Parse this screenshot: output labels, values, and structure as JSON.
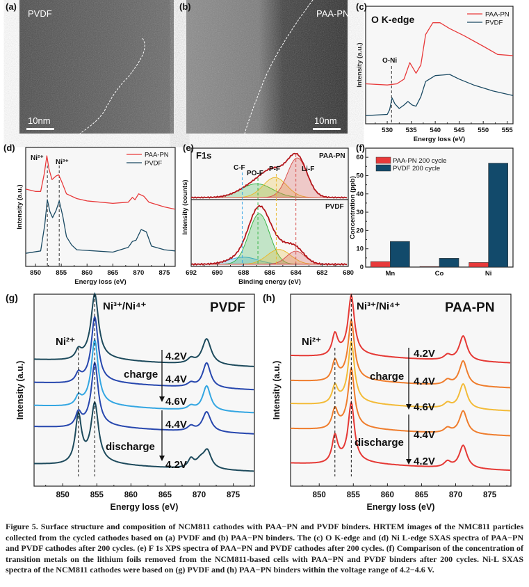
{
  "panels": {
    "a": {
      "label": "(a)",
      "title": "PVDF",
      "scale_bar": "10nm"
    },
    "b": {
      "label": "(b)",
      "title": "PAA-PN",
      "scale_bar": "10nm"
    },
    "c": {
      "label": "(c)",
      "title": "O K-edge",
      "annotation": "O-Ni"
    },
    "d": {
      "label": "(d)",
      "annotations": [
        "Ni²⁺",
        "Ni³⁺"
      ]
    },
    "e": {
      "label": "(e)",
      "title": "F1s",
      "top_label": "PAA-PN",
      "bottom_label": "PVDF",
      "components": [
        "C-F",
        "PO-F",
        "P-F",
        "Li-F"
      ]
    },
    "f": {
      "label": "(f)"
    },
    "g": {
      "label": "(g)",
      "title": "PVDF",
      "ni2": "Ni²⁺",
      "ni34": "Ni³⁺/Ni⁴⁺",
      "charge": "charge",
      "discharge": "discharge",
      "voltages": [
        "4.2V",
        "4.4V",
        "4.6V",
        "4.4V",
        "4.2V"
      ]
    },
    "h": {
      "label": "(h)",
      "title": "PAA-PN",
      "ni2": "Ni²⁺",
      "ni34": "Ni³⁺/Ni⁴⁺",
      "charge": "charge",
      "discharge": "discharge",
      "voltages": [
        "4.2V",
        "4.4V",
        "4.6V",
        "4.4V",
        "4.2V"
      ]
    }
  },
  "caption": "Figure 5. Surface structure and composition of NCM811 cathodes with PAA−PN and PVDF binders. HRTEM images of the NMC811 particles collected from the cycled cathodes based on (a) PVDF and (b) PAA−PN binders. The (c) O K-edge and (d) Ni L-edge SXAS spectra of PAA−PN and PVDF cathodes after 200 cycles. (e) F 1s XPS spectra of PAA−PN and PVDF cathodes after 200 cycles. (f) Comparison of the concentration of transition metals on the lithium foils removed from the NCM811-based cells with PAA−PN and PVDF binders after 200 cycles. Ni-L SXAS spectra of the NCM811 cathodes were based on (g) PVDF and (h) PAA−PN binders within the voltage range of 4.2−4.6 V.",
  "chart_data": [
    {
      "id": "c",
      "type": "line",
      "title": "O K-edge",
      "xlabel": "Energy loss (eV)",
      "ylabel": "Intensity (a.u.)",
      "xlim": [
        525.5,
        556.2
      ],
      "ylim": [
        0,
        10
      ],
      "xticks": [
        530,
        535,
        540,
        545,
        550,
        555
      ],
      "legend": "top-right",
      "series": [
        {
          "name": "PAA-PN",
          "color": "#e8393a",
          "x": [
            525.5,
            530,
            532,
            533.5,
            534.7,
            536,
            537,
            538,
            539.5,
            541,
            543,
            546,
            550,
            553,
            556.2
          ],
          "y": [
            3.4,
            3.3,
            3.4,
            3.8,
            5.2,
            4.3,
            5.0,
            7.6,
            8.6,
            8.6,
            8.1,
            7.5,
            6.6,
            5.9,
            5.8
          ]
        },
        {
          "name": "PVDF",
          "color": "#1b4a63",
          "x": [
            525.5,
            530,
            530.5,
            531,
            531.6,
            532.5,
            533.5,
            534.3,
            535.2,
            536,
            537,
            538,
            540,
            543,
            545,
            548,
            552,
            556.2
          ],
          "y": [
            0.7,
            0.8,
            1.2,
            2.2,
            1.7,
            1.3,
            1.6,
            1.9,
            1.6,
            1.5,
            2.3,
            3.6,
            4.1,
            4.2,
            3.8,
            3.3,
            2.8,
            2.4
          ]
        }
      ],
      "marker_x": 530.9
    },
    {
      "id": "d",
      "type": "line",
      "xlabel": "Energy loss (eV)",
      "ylabel": "Intensity (a.u.)",
      "xlim": [
        848.1,
        877.1
      ],
      "ylim": [
        0,
        10
      ],
      "xticks": [
        850,
        855,
        860,
        865,
        870,
        875
      ],
      "legend": "top-right",
      "series": [
        {
          "name": "PAA-PN",
          "color": "#e8393a",
          "x": [
            848.1,
            850,
            851,
            851.7,
            852.2,
            852.6,
            853.2,
            854,
            854.5,
            855.2,
            856,
            858,
            860,
            865,
            868,
            868.8,
            869.3,
            870,
            871,
            872,
            875,
            877.1
          ],
          "y": [
            6.5,
            6.3,
            6.3,
            7.8,
            9.3,
            8.2,
            7.3,
            7.6,
            7.7,
            7.0,
            6.1,
            5.7,
            5.5,
            5.3,
            5.4,
            5.8,
            5.6,
            6.1,
            5.9,
            5.4,
            5.0,
            4.8
          ]
        },
        {
          "name": "PVDF",
          "color": "#1b4a63",
          "x": [
            848.1,
            851,
            851.8,
            852.3,
            852.8,
            853.3,
            854,
            854.6,
            855.3,
            856,
            857,
            858,
            865,
            868,
            868.8,
            869.5,
            870.5,
            871.5,
            872.5,
            875,
            877.1
          ],
          "y": [
            1.1,
            1.3,
            3.5,
            5.6,
            4.6,
            4.1,
            4.7,
            5.5,
            4.2,
            2.5,
            1.8,
            1.4,
            1.2,
            1.6,
            2.1,
            2.2,
            3.1,
            2.9,
            1.7,
            1.4,
            1.3
          ]
        }
      ],
      "marker_x": [
        852.3,
        854.6
      ]
    },
    {
      "id": "e",
      "type": "line",
      "title": "F1s",
      "xlabel": "Binding energy (eV)",
      "ylabel": "Intensity (counts)",
      "xlim": [
        692,
        680
      ],
      "xticks": [
        692,
        690,
        688,
        686,
        684,
        682,
        680
      ],
      "top": {
        "name": "PAA-PN",
        "peaks": [
          {
            "name": "C-F",
            "center": 688.1,
            "height": 0.0,
            "sigma": 1.0
          },
          {
            "name": "PO-F",
            "center": 687.0,
            "height": 0.33,
            "sigma": 1.2
          },
          {
            "name": "P-F",
            "center": 685.6,
            "height": 0.48,
            "sigma": 0.9
          },
          {
            "name": "Li-F",
            "center": 683.9,
            "height": 0.95,
            "sigma": 0.75
          }
        ]
      },
      "bottom": {
        "name": "PVDF",
        "peaks": [
          {
            "name": "C-F",
            "center": 688.0,
            "height": 0.13,
            "sigma": 1.1
          },
          {
            "name": "PO-F",
            "center": 686.8,
            "height": 0.92,
            "sigma": 0.8
          },
          {
            "name": "P-F",
            "center": 685.3,
            "height": 0.27,
            "sigma": 0.9
          },
          {
            "name": "Li-F",
            "center": 684.0,
            "height": 0.24,
            "sigma": 0.7
          }
        ]
      },
      "component_colors": {
        "C-F": "#3fa9e6",
        "PO-F": "#3bb54a",
        "P-F": "#e9b92f",
        "Li-F": "#d9534f"
      },
      "marker_x": [
        688.1,
        686.9,
        685.5,
        684.0
      ]
    },
    {
      "id": "f",
      "type": "bar",
      "categories": [
        "Mn",
        "Co",
        "Ni"
      ],
      "ylabel": "Concentration (ppb)",
      "ylim": [
        0,
        65
      ],
      "yticks": [
        0,
        10,
        20,
        30,
        40,
        50,
        60
      ],
      "legend": "top-left",
      "series": [
        {
          "name": "PAA-PN 200 cycle",
          "color": "#e8393a",
          "values": [
            3.0,
            0.3,
            2.5
          ]
        },
        {
          "name": "PVDF 200 cycle",
          "color": "#124a6b",
          "values": [
            14.0,
            4.8,
            56.8
          ]
        }
      ]
    },
    {
      "id": "g",
      "type": "line",
      "title": "PVDF",
      "xlabel": "Energy loss (eV)",
      "ylabel": "Intensity (a.u.)",
      "xlim": [
        845.8,
        878.1
      ],
      "ylim": [
        0,
        10
      ],
      "xticks": [
        850,
        855,
        860,
        865,
        870,
        875
      ],
      "marker_x": [
        852.3,
        854.7
      ],
      "series": [
        {
          "name": "4.2V charge",
          "color": "#1d4a5c",
          "baseline": 6.4,
          "peaks": [
            [
              852.3,
              0.45,
              0.5
            ],
            [
              854.7,
              3.3,
              0.65
            ],
            [
              868.8,
              0.25,
              0.6
            ],
            [
              871.1,
              1.35,
              0.8
            ]
          ]
        },
        {
          "name": "4.4V",
          "color": "#2747ae",
          "baseline": 5.2,
          "peaks": [
            [
              852.3,
              0.45,
              0.5
            ],
            [
              854.7,
              3.3,
              0.6
            ],
            [
              868.8,
              0.2,
              0.6
            ],
            [
              871.1,
              1.3,
              0.7
            ]
          ]
        },
        {
          "name": "4.6V",
          "color": "#33a6e2",
          "baseline": 4.0,
          "peaks": [
            [
              852.3,
              0.45,
              0.5
            ],
            [
              854.7,
              3.3,
              0.6
            ],
            [
              868.8,
              0.2,
              0.6
            ],
            [
              871.1,
              1.3,
              0.7
            ]
          ]
        },
        {
          "name": "4.4V discharge",
          "color": "#2747ae",
          "baseline": 2.9,
          "peaks": [
            [
              852.3,
              0.7,
              0.5
            ],
            [
              854.7,
              3.2,
              0.6
            ],
            [
              868.8,
              0.25,
              0.6
            ],
            [
              871.1,
              1.05,
              0.75
            ]
          ]
        },
        {
          "name": "4.2V discharge",
          "color": "#1d4a5c",
          "baseline": 0.95,
          "peaks": [
            [
              852.3,
              2.5,
              0.55
            ],
            [
              854.7,
              3.0,
              0.65
            ],
            [
              868.8,
              0.45,
              0.5
            ],
            [
              870.2,
              0.4,
              0.8
            ],
            [
              871.2,
              0.9,
              0.7
            ]
          ]
        }
      ]
    },
    {
      "id": "h",
      "type": "line",
      "title": "PAA-PN",
      "xlabel": "Energy loss (eV)",
      "ylabel": "Intensity (a.u.)",
      "xlim": [
        845.8,
        878.1
      ],
      "ylim": [
        0,
        10
      ],
      "xticks": [
        850,
        855,
        860,
        865,
        870,
        875
      ],
      "marker_x": [
        852.3,
        854.7
      ],
      "series": [
        {
          "name": "4.2V charge",
          "color": "#e53935",
          "baseline": 6.6,
          "peaks": [
            [
              852.3,
              1.1,
              0.5
            ],
            [
              854.7,
              3.0,
              0.55
            ],
            [
              868.8,
              0.25,
              0.6
            ],
            [
              871.1,
              1.3,
              0.7
            ]
          ]
        },
        {
          "name": "4.4V",
          "color": "#ef7d2d",
          "baseline": 5.3,
          "peaks": [
            [
              852.3,
              1.0,
              0.5
            ],
            [
              854.7,
              3.0,
              0.55
            ],
            [
              868.8,
              0.25,
              0.6
            ],
            [
              871.1,
              1.3,
              0.7
            ]
          ]
        },
        {
          "name": "4.6V",
          "color": "#f3bb38",
          "baseline": 4.1,
          "peaks": [
            [
              852.3,
              0.9,
              0.5
            ],
            [
              854.7,
              3.1,
              0.55
            ],
            [
              868.8,
              0.25,
              0.6
            ],
            [
              871.1,
              1.3,
              0.7
            ]
          ]
        },
        {
          "name": "4.4V discharge",
          "color": "#ef7d2d",
          "baseline": 2.8,
          "peaks": [
            [
              852.3,
              1.0,
              0.5
            ],
            [
              854.7,
              3.0,
              0.55
            ],
            [
              868.8,
              0.25,
              0.6
            ],
            [
              871.1,
              1.2,
              0.7
            ]
          ]
        },
        {
          "name": "4.2V discharge",
          "color": "#e53935",
          "baseline": 1.0,
          "peaks": [
            [
              852.3,
              1.4,
              0.5
            ],
            [
              854.7,
              3.0,
              0.55
            ],
            [
              868.8,
              0.3,
              0.6
            ],
            [
              871.1,
              1.2,
              0.7
            ]
          ]
        }
      ]
    }
  ]
}
